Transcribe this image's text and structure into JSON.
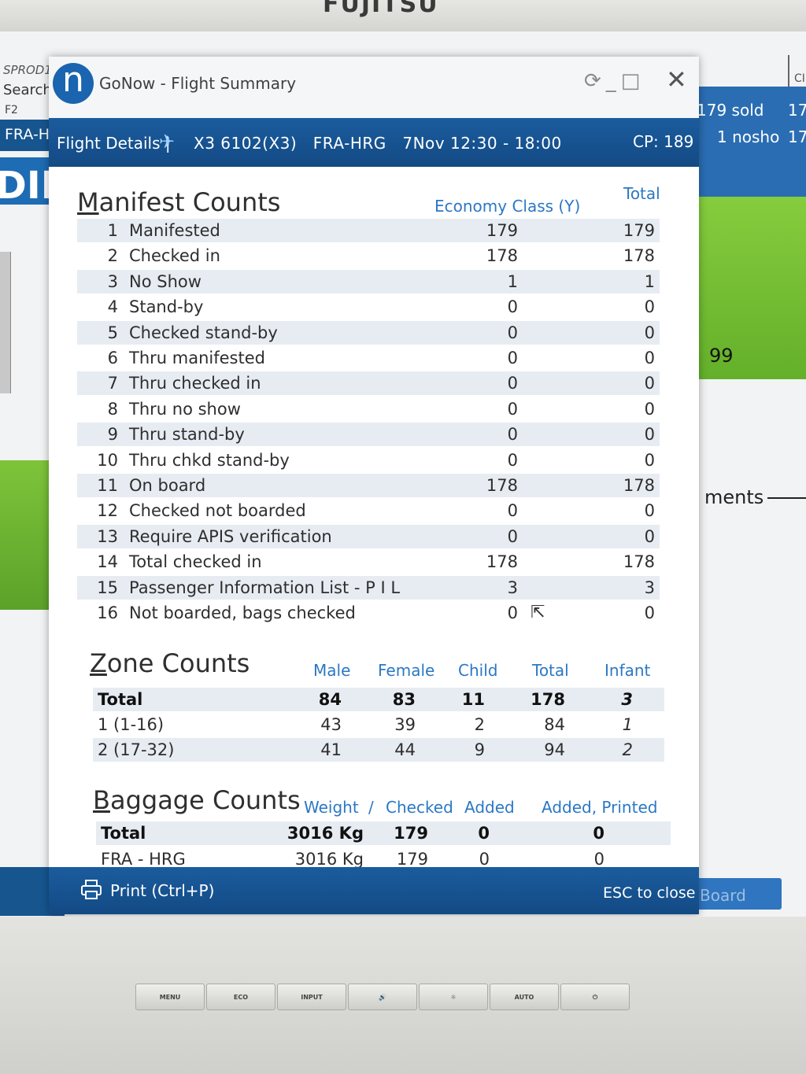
{
  "monitor": {
    "brand": "FUJITSU",
    "buttons": [
      "MENU",
      "ECO",
      "INPUT",
      "🔊",
      "☼",
      "AUTO",
      "⏻"
    ]
  },
  "background_app": {
    "env": "SPROD1",
    "search": "Search",
    "f2": "F2",
    "route": "FRA-H",
    "banner_fragment": "DIN",
    "sold": "179 sold",
    "sold_num": "17",
    "nosho": "1 nosho",
    "nosho_num": "17",
    "green_value": "99",
    "ments": "ments",
    "board_button": "Board",
    "ci": "CI"
  },
  "window": {
    "title": "GoNow - Flight Summary",
    "logo_letter": "n",
    "close_icon": "✕"
  },
  "flight_bar": {
    "label": "Flight Details |",
    "flight": "X3 6102(X3)",
    "route": "FRA-HRG",
    "date_time": "7Nov 12:30 - 18:00",
    "cp": "CP: 189"
  },
  "manifest": {
    "title_first": "M",
    "title_rest": "anifest Counts",
    "col_economy": "Economy Class (Y)",
    "col_total": "Total",
    "rows": [
      {
        "no": "1",
        "label": "Manifested",
        "economy": "179",
        "total": "179"
      },
      {
        "no": "2",
        "label": "Checked in",
        "economy": "178",
        "total": "178"
      },
      {
        "no": "3",
        "label": "No Show",
        "economy": "1",
        "total": "1"
      },
      {
        "no": "4",
        "label": "Stand-by",
        "economy": "0",
        "total": "0"
      },
      {
        "no": "5",
        "label": "Checked stand-by",
        "economy": "0",
        "total": "0"
      },
      {
        "no": "6",
        "label": "Thru manifested",
        "economy": "0",
        "total": "0"
      },
      {
        "no": "7",
        "label": "Thru checked in",
        "economy": "0",
        "total": "0"
      },
      {
        "no": "8",
        "label": "Thru no show",
        "economy": "0",
        "total": "0"
      },
      {
        "no": "9",
        "label": "Thru stand-by",
        "economy": "0",
        "total": "0"
      },
      {
        "no": "10",
        "label": "Thru chkd stand-by",
        "economy": "0",
        "total": "0"
      },
      {
        "no": "11",
        "label": "On board",
        "economy": "178",
        "total": "178"
      },
      {
        "no": "12",
        "label": "Checked not boarded",
        "economy": "0",
        "total": "0"
      },
      {
        "no": "13",
        "label": "Require APIS verification",
        "economy": "0",
        "total": "0"
      },
      {
        "no": "14",
        "label": "Total checked in",
        "economy": "178",
        "total": "178"
      },
      {
        "no": "15",
        "label": "Passenger Information List - P I L",
        "economy": "3",
        "total": "3"
      },
      {
        "no": "16",
        "label": "Not boarded, bags checked",
        "economy": "0",
        "total": "0"
      }
    ]
  },
  "zones": {
    "title_first": "Z",
    "title_rest": "one Counts",
    "cols": [
      "Male",
      "Female",
      "Child",
      "Total",
      "Infant"
    ],
    "rows": [
      {
        "label": "Total",
        "male": "84",
        "female": "83",
        "child": "11",
        "total": "178",
        "infant": "3"
      },
      {
        "label": "1 (1-16)",
        "male": "43",
        "female": "39",
        "child": "2",
        "total": "84",
        "infant": "1"
      },
      {
        "label": "2 (17-32)",
        "male": "41",
        "female": "44",
        "child": "9",
        "total": "94",
        "infant": "2"
      }
    ]
  },
  "baggage": {
    "title_first": "B",
    "title_rest": "aggage Counts",
    "col_weight": "Weight",
    "col_sep": "/",
    "col_checked": "Checked",
    "col_added": "Added",
    "col_added_printed": "Added, Printed",
    "rows": [
      {
        "label": "Total",
        "weight": "3016 Kg",
        "checked": "179",
        "added": "0",
        "added_printed": "0"
      },
      {
        "label": "FRA - HRG",
        "weight": "3016 Kg",
        "checked": "179",
        "added": "0",
        "added_printed": "0"
      }
    ]
  },
  "footer": {
    "print": "Print (Ctrl+P)",
    "esc": "ESC to close"
  },
  "colors": {
    "header_blue": "#1b5c9e",
    "column_header_blue": "#2b78c4",
    "row_alt": "#e7ecf2",
    "green": "#7ec43a"
  }
}
